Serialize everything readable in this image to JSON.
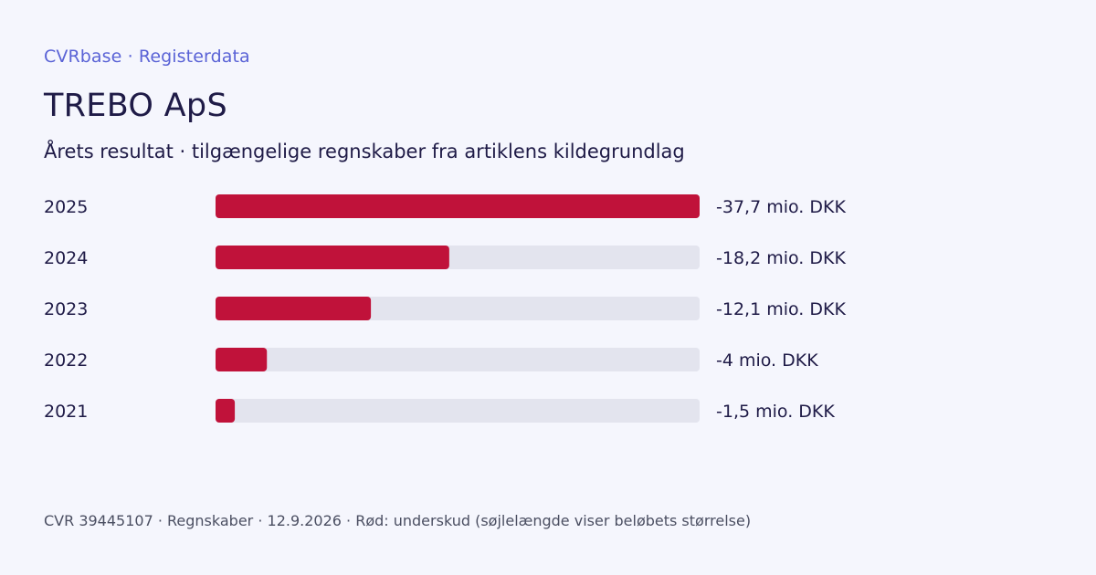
{
  "header": {
    "brand": "CVRbase · Registerdata",
    "company_name": "TREBO ApS",
    "subtitle": "Årets resultat · tilgængelige regnskaber fra artiklens kildegrundlag"
  },
  "footer": {
    "text": "CVR 39445107 · Regnskaber · 12.9.2026 · Rød: underskud (søjlelængde viser beløbets størrelse)"
  },
  "colors": {
    "deficit": "#c0123a",
    "track": "#e3e4ee",
    "text": "#1f1b47",
    "brand": "#5a63d6"
  },
  "chart_data": {
    "type": "bar",
    "orientation": "horizontal",
    "title": "Årets resultat · tilgængelige regnskaber fra artiklens kildegrundlag",
    "categories": [
      "2025",
      "2024",
      "2023",
      "2022",
      "2021"
    ],
    "values": [
      -37.7,
      -18.2,
      -12.1,
      -4,
      -1.5
    ],
    "value_labels": [
      "-37,7 mio. DKK",
      "-18,2 mio. DKK",
      "-12,1 mio. DKK",
      "-4 mio. DKK",
      "-1,5 mio. DKK"
    ],
    "unit": "mio. DKK",
    "scale_max_abs": 37.7,
    "grid": false,
    "legend": "none"
  }
}
